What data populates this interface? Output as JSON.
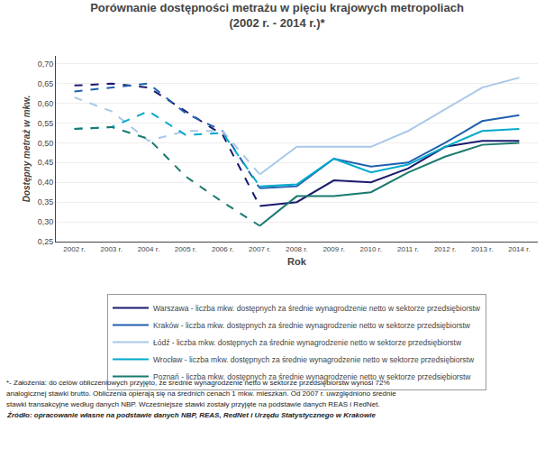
{
  "chart_data": {
    "type": "line",
    "title": "Porównanie dostępności metrażu w pięciu krajowych metropoliach",
    "subtitle": "(2002 r. - 2014 r.)*",
    "x_label": "Rok",
    "y_label": "Dostępny metraż w mkw.",
    "x": [
      2002,
      2003,
      2004,
      2005,
      2006,
      2007,
      2008,
      2009,
      2010,
      2011,
      2012,
      2013,
      2014
    ],
    "series": [
      {
        "name": "Warszawa - liczba mkw. dostępnych za średnie wynagrodzenie netto w sektorze przedsiębiorstw",
        "color": "#1a1a6e",
        "values": [
          0.645,
          0.65,
          0.64,
          0.58,
          0.52,
          0.34,
          0.35,
          0.405,
          0.4,
          0.435,
          0.49,
          0.505,
          0.505
        ],
        "line_style": [
          "dashed",
          "dashed",
          "dashed",
          "dashed",
          "dashed",
          "solid",
          "solid",
          "solid",
          "solid",
          "solid",
          "solid",
          "solid"
        ]
      },
      {
        "name": "Kraków - liczba mkw. dostępnych za średnie wynagrodzenie netto w sektorze przedsiębiorstw",
        "color": "#2060b0",
        "values": [
          0.63,
          0.64,
          0.65,
          0.575,
          0.53,
          0.385,
          0.39,
          0.46,
          0.44,
          0.45,
          0.5,
          0.555,
          0.57
        ],
        "line_style": [
          "dashed",
          "dashed",
          "dashed",
          "dashed",
          "dashed",
          "solid",
          "solid",
          "solid",
          "solid",
          "solid",
          "solid",
          "solid"
        ]
      },
      {
        "name": "Łódź - liczba mkw. dostępnych za średnie wynagrodzenie netto w sektorze przedsiębiorstw",
        "color": "#a8c8e8",
        "values": [
          0.615,
          0.58,
          0.505,
          0.53,
          0.53,
          0.42,
          0.49,
          0.49,
          0.49,
          0.53,
          0.585,
          0.64,
          0.665
        ],
        "line_style": [
          "dashed",
          "dashed",
          "dashed",
          "dashed",
          "dashed",
          "solid",
          "solid",
          "solid",
          "solid",
          "solid",
          "solid",
          "solid"
        ]
      },
      {
        "name": "Wrocław - liczba mkw. dostępnych za średnie wynagrodzenie netto w sektorze przedsiębiorstw",
        "color": "#00aacc",
        "values": [
          0.535,
          0.54,
          0.58,
          0.52,
          0.525,
          0.39,
          0.395,
          0.46,
          0.425,
          0.445,
          0.49,
          0.53,
          0.535
        ],
        "line_style": [
          "dashed",
          "dashed",
          "dashed",
          "dashed",
          "dashed",
          "solid",
          "solid",
          "solid",
          "solid",
          "solid",
          "solid",
          "solid"
        ]
      },
      {
        "name": "Poznań - liczba mkw. dostępnych za średnie wynagrodzenie netto w sektorze przedsiębiorstw",
        "color": "#1a7a6e",
        "values": [
          0.535,
          0.54,
          0.51,
          0.415,
          0.35,
          0.29,
          0.365,
          0.365,
          0.375,
          0.425,
          0.465,
          0.495,
          0.5
        ],
        "line_style": [
          "dashed",
          "dashed",
          "dashed",
          "dashed",
          "dashed",
          "solid",
          "solid",
          "solid",
          "solid",
          "solid",
          "solid",
          "solid"
        ]
      }
    ],
    "xlim": [
      2001.5,
      2014.5
    ],
    "xticks": [
      {
        "value": 2002,
        "label": "2002 r."
      },
      {
        "value": 2003,
        "label": "2003 r."
      },
      {
        "value": 2004,
        "label": "2004 r."
      },
      {
        "value": 2005,
        "label": "2005 r."
      },
      {
        "value": 2006,
        "label": "2006 r."
      },
      {
        "value": 2007,
        "label": "2007 r."
      },
      {
        "value": 2008,
        "label": "2008 r."
      },
      {
        "value": 2009,
        "label": "2009 r."
      },
      {
        "value": 2010,
        "label": "2010 r."
      },
      {
        "value": 2011,
        "label": "2011 r."
      },
      {
        "value": 2012,
        "label": "2012 r."
      },
      {
        "value": 2013,
        "label": "2013 r."
      },
      {
        "value": 2014,
        "label": "2014 r."
      }
    ],
    "ylim": [
      0.25,
      0.72
    ],
    "yticks": [
      {
        "value": 0.25,
        "label": "0,25"
      },
      {
        "value": 0.3,
        "label": "0,30"
      },
      {
        "value": 0.35,
        "label": "0,35"
      },
      {
        "value": 0.4,
        "label": "0,40"
      },
      {
        "value": 0.45,
        "label": "0,45"
      },
      {
        "value": 0.5,
        "label": "0,50"
      },
      {
        "value": 0.55,
        "label": "0,55"
      },
      {
        "value": 0.6,
        "label": "0,60"
      },
      {
        "value": 0.65,
        "label": "0,65"
      },
      {
        "value": 0.7,
        "label": "0,70"
      }
    ],
    "grid": "y",
    "legend": "bottom",
    "annotations": [
      "*- Założenia: do celów obliczeniowych przyjęto, że średnie wynagrodzenie netto w sektorze przedsiębiorstw wynosi 72%",
      "analogicznej stawki brutto. Obliczenia opierają się na średnich cenach 1 mkw. mieszkań. Od 2007 r. uwzględniono średnie",
      "stawki transakcyjne według danych NBP. Wcześniejsze stawki zostały przyjęte na podstawie danych REAS i RedNet.",
      "Źródło: opracowanie własne na podstawie danych NBP, REAS, RedNet i Urzędu Statystycznego w Krakowie"
    ]
  }
}
